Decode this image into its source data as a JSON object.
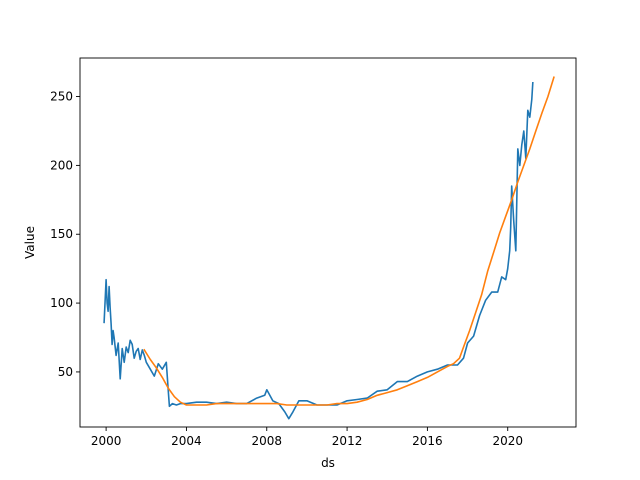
{
  "chart_data": {
    "type": "line",
    "title": "",
    "xlabel": "ds",
    "ylabel": "Value",
    "xlim": [
      1998.7,
      2023.4
    ],
    "ylim": [
      10,
      278
    ],
    "xticks": [
      {
        "value": 2000,
        "label": "2000"
      },
      {
        "value": 2004,
        "label": "2004"
      },
      {
        "value": 2008,
        "label": "2008"
      },
      {
        "value": 2012,
        "label": "2012"
      },
      {
        "value": 2016,
        "label": "2016"
      },
      {
        "value": 2020,
        "label": "2020"
      }
    ],
    "yticks": [
      {
        "value": 50,
        "label": "50"
      },
      {
        "value": 100,
        "label": "100"
      },
      {
        "value": 150,
        "label": "150"
      },
      {
        "value": 200,
        "label": "200"
      },
      {
        "value": 250,
        "label": "250"
      }
    ],
    "grid": false,
    "legend": "none",
    "series": [
      {
        "color": "#1f77b4",
        "x": [
          1999.9,
          2000.0,
          2000.05,
          2000.1,
          2000.15,
          2000.2,
          2000.25,
          2000.3,
          2000.35,
          2000.4,
          2000.5,
          2000.6,
          2000.7,
          2000.8,
          2000.9,
          2001.0,
          2001.1,
          2001.2,
          2001.3,
          2001.4,
          2001.5,
          2001.6,
          2001.7,
          2001.8,
          2001.9,
          2002.0,
          2002.2,
          2002.4,
          2002.6,
          2002.8,
          2003.0,
          2003.1,
          2003.15,
          2003.3,
          2003.5,
          2003.7,
          2004.0,
          2004.5,
          2005.0,
          2005.5,
          2006.0,
          2006.5,
          2007.0,
          2007.5,
          2007.9,
          2008.0,
          2008.3,
          2008.6,
          2008.9,
          2009.1,
          2009.3,
          2009.6,
          2010.0,
          2010.5,
          2011.0,
          2011.5,
          2012.0,
          2012.5,
          2013.0,
          2013.5,
          2014.0,
          2014.5,
          2015.0,
          2015.5,
          2016.0,
          2016.5,
          2017.0,
          2017.5,
          2017.8,
          2018.0,
          2018.3,
          2018.6,
          2018.9,
          2019.2,
          2019.5,
          2019.7,
          2019.9,
          2020.0,
          2020.1,
          2020.15,
          2020.2,
          2020.3,
          2020.4,
          2020.5,
          2020.6,
          2020.7,
          2020.8,
          2020.9,
          2021.0,
          2021.1,
          2021.2,
          2021.25
        ],
        "y": [
          86,
          117,
          100,
          94,
          112,
          97,
          85,
          70,
          80,
          75,
          62,
          71,
          45,
          67,
          57,
          68,
          64,
          73,
          70,
          60,
          65,
          67,
          59,
          66,
          62,
          57,
          52,
          47,
          56,
          52,
          57,
          35,
          25,
          27,
          26,
          27,
          27,
          28,
          28,
          27,
          28,
          27,
          27,
          31,
          33,
          37,
          29,
          27,
          21,
          16,
          21,
          29,
          29,
          26,
          26,
          26,
          29,
          30,
          31,
          36,
          37,
          43,
          43,
          47,
          50,
          52,
          55,
          55,
          60,
          71,
          76,
          91,
          102,
          108,
          108,
          119,
          117,
          125,
          138,
          155,
          185,
          160,
          138,
          212,
          200,
          215,
          225,
          205,
          240,
          235,
          248,
          260
        ]
      },
      {
        "color": "#ff7f0e",
        "x": [
          2001.9,
          2002.2,
          2002.5,
          2002.8,
          2003.1,
          2003.4,
          2003.7,
          2004.0,
          2004.5,
          2005.0,
          2005.5,
          2006.0,
          2006.5,
          2007.0,
          2007.5,
          2008.0,
          2008.5,
          2009.0,
          2009.5,
          2010.0,
          2010.5,
          2011.0,
          2011.5,
          2012.0,
          2012.5,
          2013.0,
          2013.5,
          2014.0,
          2014.5,
          2015.0,
          2015.5,
          2016.0,
          2016.5,
          2017.0,
          2017.3,
          2017.6,
          2017.8,
          2018.1,
          2018.4,
          2018.7,
          2019.0,
          2019.3,
          2019.6,
          2019.9,
          2020.2,
          2020.5,
          2020.8,
          2021.1,
          2021.4,
          2021.7,
          2022.0,
          2022.3
        ],
        "y": [
          66,
          59,
          53,
          46,
          38,
          32,
          28,
          26,
          26,
          26,
          27,
          27,
          27,
          27,
          27,
          27,
          27,
          26,
          26,
          26,
          26,
          26,
          27,
          27,
          28,
          30,
          33,
          35,
          37,
          40,
          43,
          46,
          50,
          54,
          56,
          60,
          68,
          80,
          93,
          106,
          123,
          137,
          151,
          163,
          175,
          188,
          200,
          212,
          225,
          238,
          250,
          264
        ]
      }
    ]
  }
}
